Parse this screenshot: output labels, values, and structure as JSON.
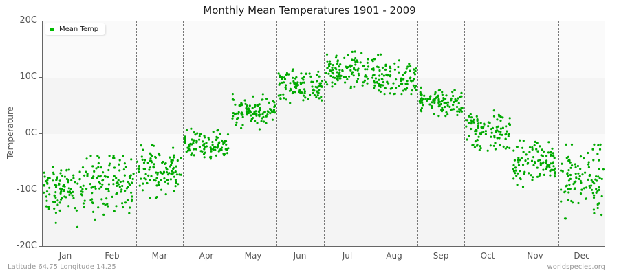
{
  "title": "Monthly Mean Temperatures 1901 - 2009",
  "legend": {
    "label": "Mean Temp",
    "color": "#00bb00"
  },
  "footer": {
    "left": "Latitude 64.75 Longitude 14.25",
    "right": "worldspecies.org"
  },
  "colors": {
    "point": "#00aa00",
    "band_light": "#fafafa",
    "band_dark": "#f4f4f4"
  },
  "chart_data": {
    "type": "scatter",
    "title": "Monthly Mean Temperatures 1901 - 2009",
    "xlabel": "",
    "ylabel": "Temperature",
    "ylim": [
      -20,
      20
    ],
    "yticks": [
      "20C",
      "10C",
      "0C",
      "-10C",
      "-20C"
    ],
    "ytick_values": [
      20,
      10,
      0,
      -10,
      -20
    ],
    "categories": [
      "Jan",
      "Feb",
      "Mar",
      "Apr",
      "May",
      "Jun",
      "Jul",
      "Aug",
      "Sep",
      "Oct",
      "Nov",
      "Dec"
    ],
    "legend": [
      "Mean Temp"
    ],
    "legend_position": "top-left",
    "grid": "alternating horizontal bands, dashed vertical month separators",
    "years": [
      1901,
      2009
    ],
    "points_per_month": 109,
    "series": [
      {
        "name": "Mean Temp",
        "monthly_summary": [
          {
            "month": "Jan",
            "mean": -10.0,
            "min": -17.0,
            "max": -4.5
          },
          {
            "month": "Feb",
            "mean": -9.0,
            "min": -18.0,
            "max": -4.0
          },
          {
            "month": "Mar",
            "mean": -6.5,
            "min": -11.5,
            "max": -1.0
          },
          {
            "month": "Apr",
            "mean": -2.0,
            "min": -4.5,
            "max": 1.5
          },
          {
            "month": "May",
            "mean": 3.5,
            "min": 0.0,
            "max": 7.0
          },
          {
            "month": "Jun",
            "mean": 8.5,
            "min": 5.0,
            "max": 12.5
          },
          {
            "month": "Jul",
            "mean": 11.0,
            "min": 7.5,
            "max": 15.0
          },
          {
            "month": "Aug",
            "mean": 10.0,
            "min": 7.0,
            "max": 14.0
          },
          {
            "month": "Sep",
            "mean": 5.5,
            "min": 2.5,
            "max": 8.5
          },
          {
            "month": "Oct",
            "mean": 0.5,
            "min": -4.5,
            "max": 5.0
          },
          {
            "month": "Nov",
            "mean": -5.0,
            "min": -9.5,
            "max": -1.0
          },
          {
            "month": "Dec",
            "mean": -8.0,
            "min": -18.0,
            "max": -2.0
          }
        ]
      }
    ]
  }
}
